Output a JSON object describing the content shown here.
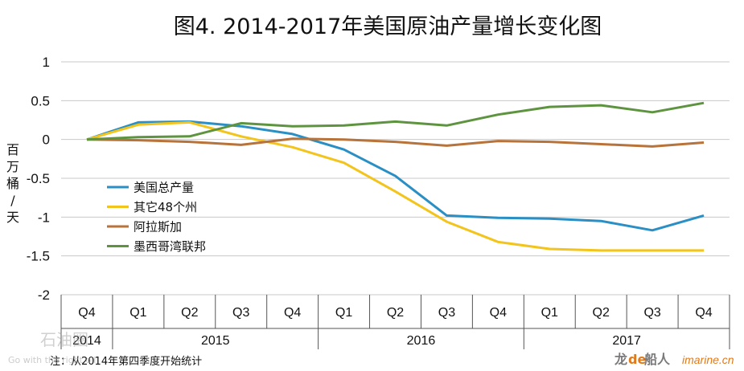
{
  "chart_data": {
    "type": "line",
    "title": "图4. 2014-2017年美国原油产量增长变化图",
    "ylabel": "百万桶/天",
    "ylim": [
      -2,
      1
    ],
    "yticks": [
      1,
      0.5,
      0,
      -0.5,
      -1,
      -1.5,
      -2
    ],
    "ytick_labels": [
      "1",
      "0.5",
      "0",
      "-0.5",
      "-1",
      "-1.5",
      "-2"
    ],
    "categories": [
      "Q4",
      "Q1",
      "Q2",
      "Q3",
      "Q4",
      "Q1",
      "Q2",
      "Q3",
      "Q4",
      "Q1",
      "Q2",
      "Q3",
      "Q4"
    ],
    "years": [
      {
        "label": "2014",
        "span": 1
      },
      {
        "label": "2015",
        "span": 4
      },
      {
        "label": "2016",
        "span": 4
      },
      {
        "label": "2017",
        "span": 4
      }
    ],
    "grid": true,
    "legend_position": "left-middle",
    "series": [
      {
        "name": "美国总产量",
        "color": "#2a8fc4",
        "values": [
          0,
          0.22,
          0.23,
          0.17,
          0.07,
          -0.13,
          -0.47,
          -0.98,
          -1.01,
          -1.02,
          -1.05,
          -1.17,
          -0.98
        ]
      },
      {
        "name": "其它48个州",
        "color": "#f2c41c",
        "values": [
          0,
          0.19,
          0.22,
          0.04,
          -0.1,
          -0.3,
          -0.67,
          -1.06,
          -1.32,
          -1.41,
          -1.43,
          -1.43,
          -1.43
        ]
      },
      {
        "name": "阿拉斯加",
        "color": "#b8733a",
        "values": [
          0,
          -0.01,
          -0.03,
          -0.07,
          0.01,
          0,
          -0.03,
          -0.08,
          -0.02,
          -0.03,
          -0.06,
          -0.09,
          -0.04
        ]
      },
      {
        "name": "墨西哥湾联邦",
        "color": "#5e9440",
        "values": [
          0,
          0.03,
          0.04,
          0.21,
          0.17,
          0.18,
          0.23,
          0.18,
          0.32,
          0.42,
          0.44,
          0.35,
          0.47
        ]
      }
    ],
    "note": "注：从2014年第四季度开始统计"
  },
  "watermarks": {
    "left": "石油圈",
    "left_sub": "Go with the right oil",
    "right_brand_1": "龙",
    "right_brand_2": "de",
    "right_brand_3": "船人",
    "right_url": "imarine.cn"
  },
  "colors": {
    "grid": "#c8c8c8",
    "axis": "#555555"
  }
}
